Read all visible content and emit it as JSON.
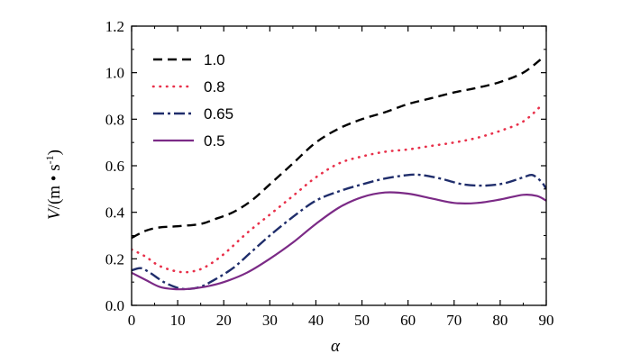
{
  "chart_data": {
    "type": "line",
    "title": "",
    "xlabel": "α",
    "ylabel": {
      "prefix": "V",
      "unit": "/(m • s",
      "exponent": "-1",
      "close": ")"
    },
    "xlim": [
      0,
      90
    ],
    "ylim": [
      0.0,
      1.2
    ],
    "x_ticks": [
      "0",
      "10",
      "20",
      "30",
      "40",
      "50",
      "60",
      "70",
      "80",
      "90"
    ],
    "y_ticks": [
      "0.0",
      "0.2",
      "0.4",
      "0.6",
      "0.8",
      "1.0",
      "1.2"
    ],
    "grid": false,
    "legend_position": "top-left",
    "series": [
      {
        "name": "1.0",
        "color": "#000000",
        "style": "dashed",
        "points": [
          [
            0,
            0.29
          ],
          [
            3,
            0.32
          ],
          [
            6,
            0.335
          ],
          [
            10,
            0.34
          ],
          [
            15,
            0.35
          ],
          [
            18,
            0.37
          ],
          [
            22,
            0.4
          ],
          [
            26,
            0.45
          ],
          [
            30,
            0.52
          ],
          [
            35,
            0.61
          ],
          [
            40,
            0.7
          ],
          [
            45,
            0.76
          ],
          [
            50,
            0.8
          ],
          [
            55,
            0.83
          ],
          [
            60,
            0.865
          ],
          [
            65,
            0.89
          ],
          [
            70,
            0.915
          ],
          [
            75,
            0.935
          ],
          [
            80,
            0.96
          ],
          [
            85,
            1.0
          ],
          [
            89,
            1.06
          ]
        ]
      },
      {
        "name": "0.8",
        "color": "#e8304a",
        "style": "dotted",
        "points": [
          [
            0,
            0.24
          ],
          [
            3,
            0.21
          ],
          [
            6,
            0.17
          ],
          [
            10,
            0.145
          ],
          [
            13,
            0.145
          ],
          [
            16,
            0.165
          ],
          [
            20,
            0.22
          ],
          [
            25,
            0.31
          ],
          [
            30,
            0.39
          ],
          [
            35,
            0.47
          ],
          [
            40,
            0.55
          ],
          [
            45,
            0.61
          ],
          [
            50,
            0.64
          ],
          [
            55,
            0.66
          ],
          [
            60,
            0.67
          ],
          [
            65,
            0.685
          ],
          [
            70,
            0.7
          ],
          [
            75,
            0.72
          ],
          [
            80,
            0.75
          ],
          [
            85,
            0.79
          ],
          [
            89,
            0.86
          ]
        ]
      },
      {
        "name": "0.65",
        "color": "#1f2d6b",
        "style": "dashdot",
        "points": [
          [
            0,
            0.15
          ],
          [
            2,
            0.16
          ],
          [
            4,
            0.14
          ],
          [
            7,
            0.1
          ],
          [
            10,
            0.075
          ],
          [
            12,
            0.07
          ],
          [
            15,
            0.08
          ],
          [
            18,
            0.11
          ],
          [
            22,
            0.16
          ],
          [
            26,
            0.23
          ],
          [
            30,
            0.3
          ],
          [
            35,
            0.38
          ],
          [
            40,
            0.45
          ],
          [
            45,
            0.49
          ],
          [
            50,
            0.52
          ],
          [
            55,
            0.545
          ],
          [
            60,
            0.56
          ],
          [
            63,
            0.56
          ],
          [
            67,
            0.545
          ],
          [
            72,
            0.52
          ],
          [
            77,
            0.515
          ],
          [
            81,
            0.525
          ],
          [
            85,
            0.55
          ],
          [
            87,
            0.56
          ],
          [
            89,
            0.53
          ],
          [
            90,
            0.5
          ]
        ]
      },
      {
        "name": "0.5",
        "color": "#7b2a86",
        "style": "solid",
        "points": [
          [
            0,
            0.14
          ],
          [
            3,
            0.11
          ],
          [
            6,
            0.08
          ],
          [
            9,
            0.07
          ],
          [
            12,
            0.07
          ],
          [
            16,
            0.08
          ],
          [
            20,
            0.1
          ],
          [
            25,
            0.14
          ],
          [
            30,
            0.2
          ],
          [
            35,
            0.27
          ],
          [
            40,
            0.35
          ],
          [
            45,
            0.42
          ],
          [
            50,
            0.465
          ],
          [
            55,
            0.485
          ],
          [
            60,
            0.48
          ],
          [
            65,
            0.46
          ],
          [
            70,
            0.44
          ],
          [
            75,
            0.44
          ],
          [
            80,
            0.455
          ],
          [
            85,
            0.475
          ],
          [
            88,
            0.47
          ],
          [
            90,
            0.45
          ]
        ]
      }
    ]
  }
}
